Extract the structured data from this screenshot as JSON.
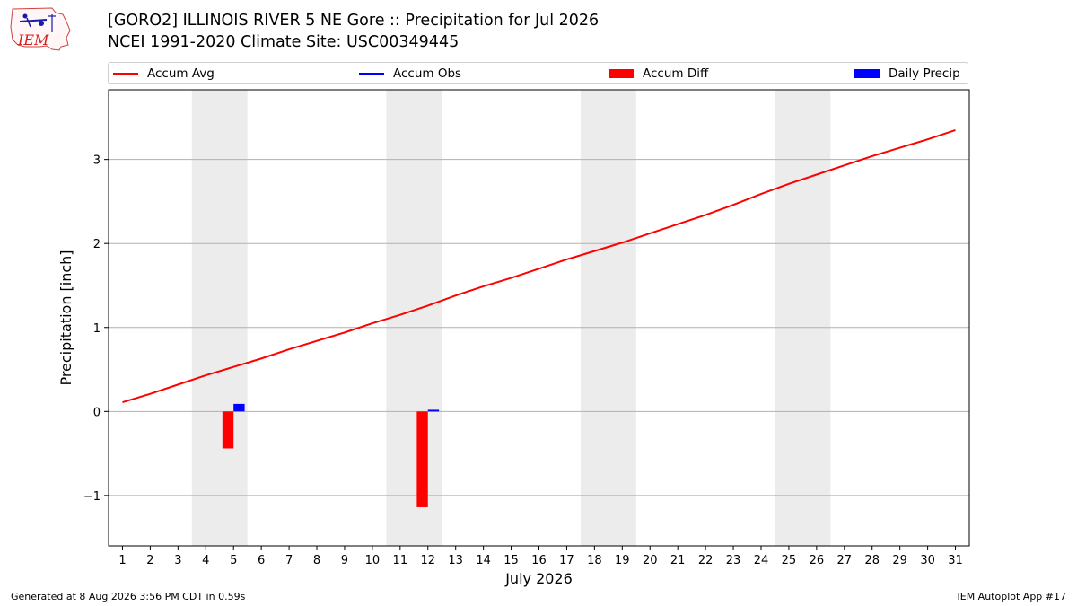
{
  "header": {
    "title_line1": "[GORO2] ILLINOIS RIVER 5 NE Gore :: Precipitation for Jul 2026",
    "title_line2": "NCEI 1991-2020 Climate Site: USC00349445",
    "logo_text": "IEM"
  },
  "legend": [
    {
      "label": "Accum Avg",
      "kind": "line",
      "color": "#ff0000"
    },
    {
      "label": "Accum Obs",
      "kind": "line",
      "color": "#0000ff"
    },
    {
      "label": "Accum Diff",
      "kind": "box",
      "color": "#ff0000"
    },
    {
      "label": "Daily Precip",
      "kind": "box",
      "color": "#0000ff"
    }
  ],
  "chart_data": {
    "type": "bar",
    "xlabel": "July 2026",
    "ylabel": "Precipitation [inch]",
    "xlim": [
      0.5,
      31.5
    ],
    "ylim": [
      -1.6,
      3.83
    ],
    "yticks": [
      -1,
      0,
      1,
      2,
      3
    ],
    "ytick_labels": [
      "−1",
      "0",
      "1",
      "2",
      "3"
    ],
    "x": [
      1,
      2,
      3,
      4,
      5,
      6,
      7,
      8,
      9,
      10,
      11,
      12,
      13,
      14,
      15,
      16,
      17,
      18,
      19,
      20,
      21,
      22,
      23,
      24,
      25,
      26,
      27,
      28,
      29,
      30,
      31
    ],
    "x_tick_labels": [
      "1",
      "2",
      "3",
      "4",
      "5",
      "6",
      "7",
      "8",
      "9",
      "10",
      "11",
      "12",
      "13",
      "14",
      "15",
      "16",
      "17",
      "18",
      "19",
      "20",
      "21",
      "22",
      "23",
      "24",
      "25",
      "26",
      "27",
      "28",
      "29",
      "30",
      "31"
    ],
    "weekend_spans": [
      [
        3.5,
        5.5
      ],
      [
        10.5,
        12.5
      ],
      [
        17.5,
        19.5
      ],
      [
        24.5,
        26.5
      ]
    ],
    "grid": "horizontal",
    "series": [
      {
        "name": "Accum Avg",
        "type": "line",
        "color": "#ff0000",
        "values": [
          0.11,
          0.21,
          0.32,
          0.43,
          0.53,
          0.63,
          0.74,
          0.84,
          0.94,
          1.05,
          1.15,
          1.26,
          1.38,
          1.49,
          1.59,
          1.7,
          1.81,
          1.91,
          2.01,
          2.12,
          2.23,
          2.34,
          2.46,
          2.59,
          2.71,
          2.82,
          2.93,
          3.04,
          3.14,
          3.24,
          3.35
        ]
      },
      {
        "name": "Accum Diff",
        "type": "bar",
        "color": "#ff0000",
        "points": [
          {
            "x": 5,
            "y": -0.44
          },
          {
            "x": 12,
            "y": -1.14
          }
        ]
      },
      {
        "name": "Daily Precip",
        "type": "bar",
        "color": "#0000ff",
        "points": [
          {
            "x": 5,
            "y": 0.09
          },
          {
            "x": 12,
            "y": 0.02
          }
        ]
      }
    ]
  },
  "footer": {
    "left": "Generated at 8 Aug 2026 3:56 PM CDT in 0.59s",
    "right": "IEM Autoplot App #17"
  }
}
